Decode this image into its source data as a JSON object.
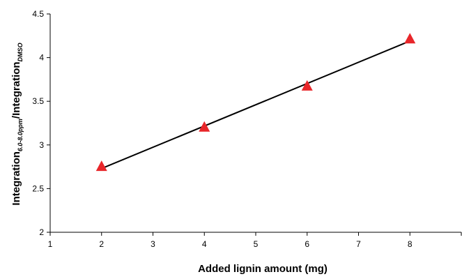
{
  "chart_data": {
    "type": "scatter",
    "title": "",
    "xlabel": "Added lignin amount (mg)",
    "ylabel": {
      "main": "Integration",
      "sub1": "6.0-8.0ppm",
      "sep": "/Integration",
      "sub2": "DMSO"
    },
    "xlim": [
      1,
      9
    ],
    "ylim": [
      2,
      4.5
    ],
    "xticks": [
      "1",
      "2",
      "3",
      "4",
      "5",
      "6",
      "7",
      "8"
    ],
    "yticks": [
      "2",
      "2.5",
      "3",
      "3.5",
      "4",
      "4.5"
    ],
    "grid": false,
    "legend": "none",
    "series": [
      {
        "marker": "triangle",
        "color": "#e8262a",
        "x": [
          2,
          4,
          6,
          8
        ],
        "y": [
          2.75,
          3.2,
          3.67,
          4.21
        ]
      }
    ],
    "trendline": {
      "type": "linear",
      "color": "#000000",
      "x": [
        2,
        8
      ],
      "y": [
        2.73,
        4.19
      ]
    }
  }
}
